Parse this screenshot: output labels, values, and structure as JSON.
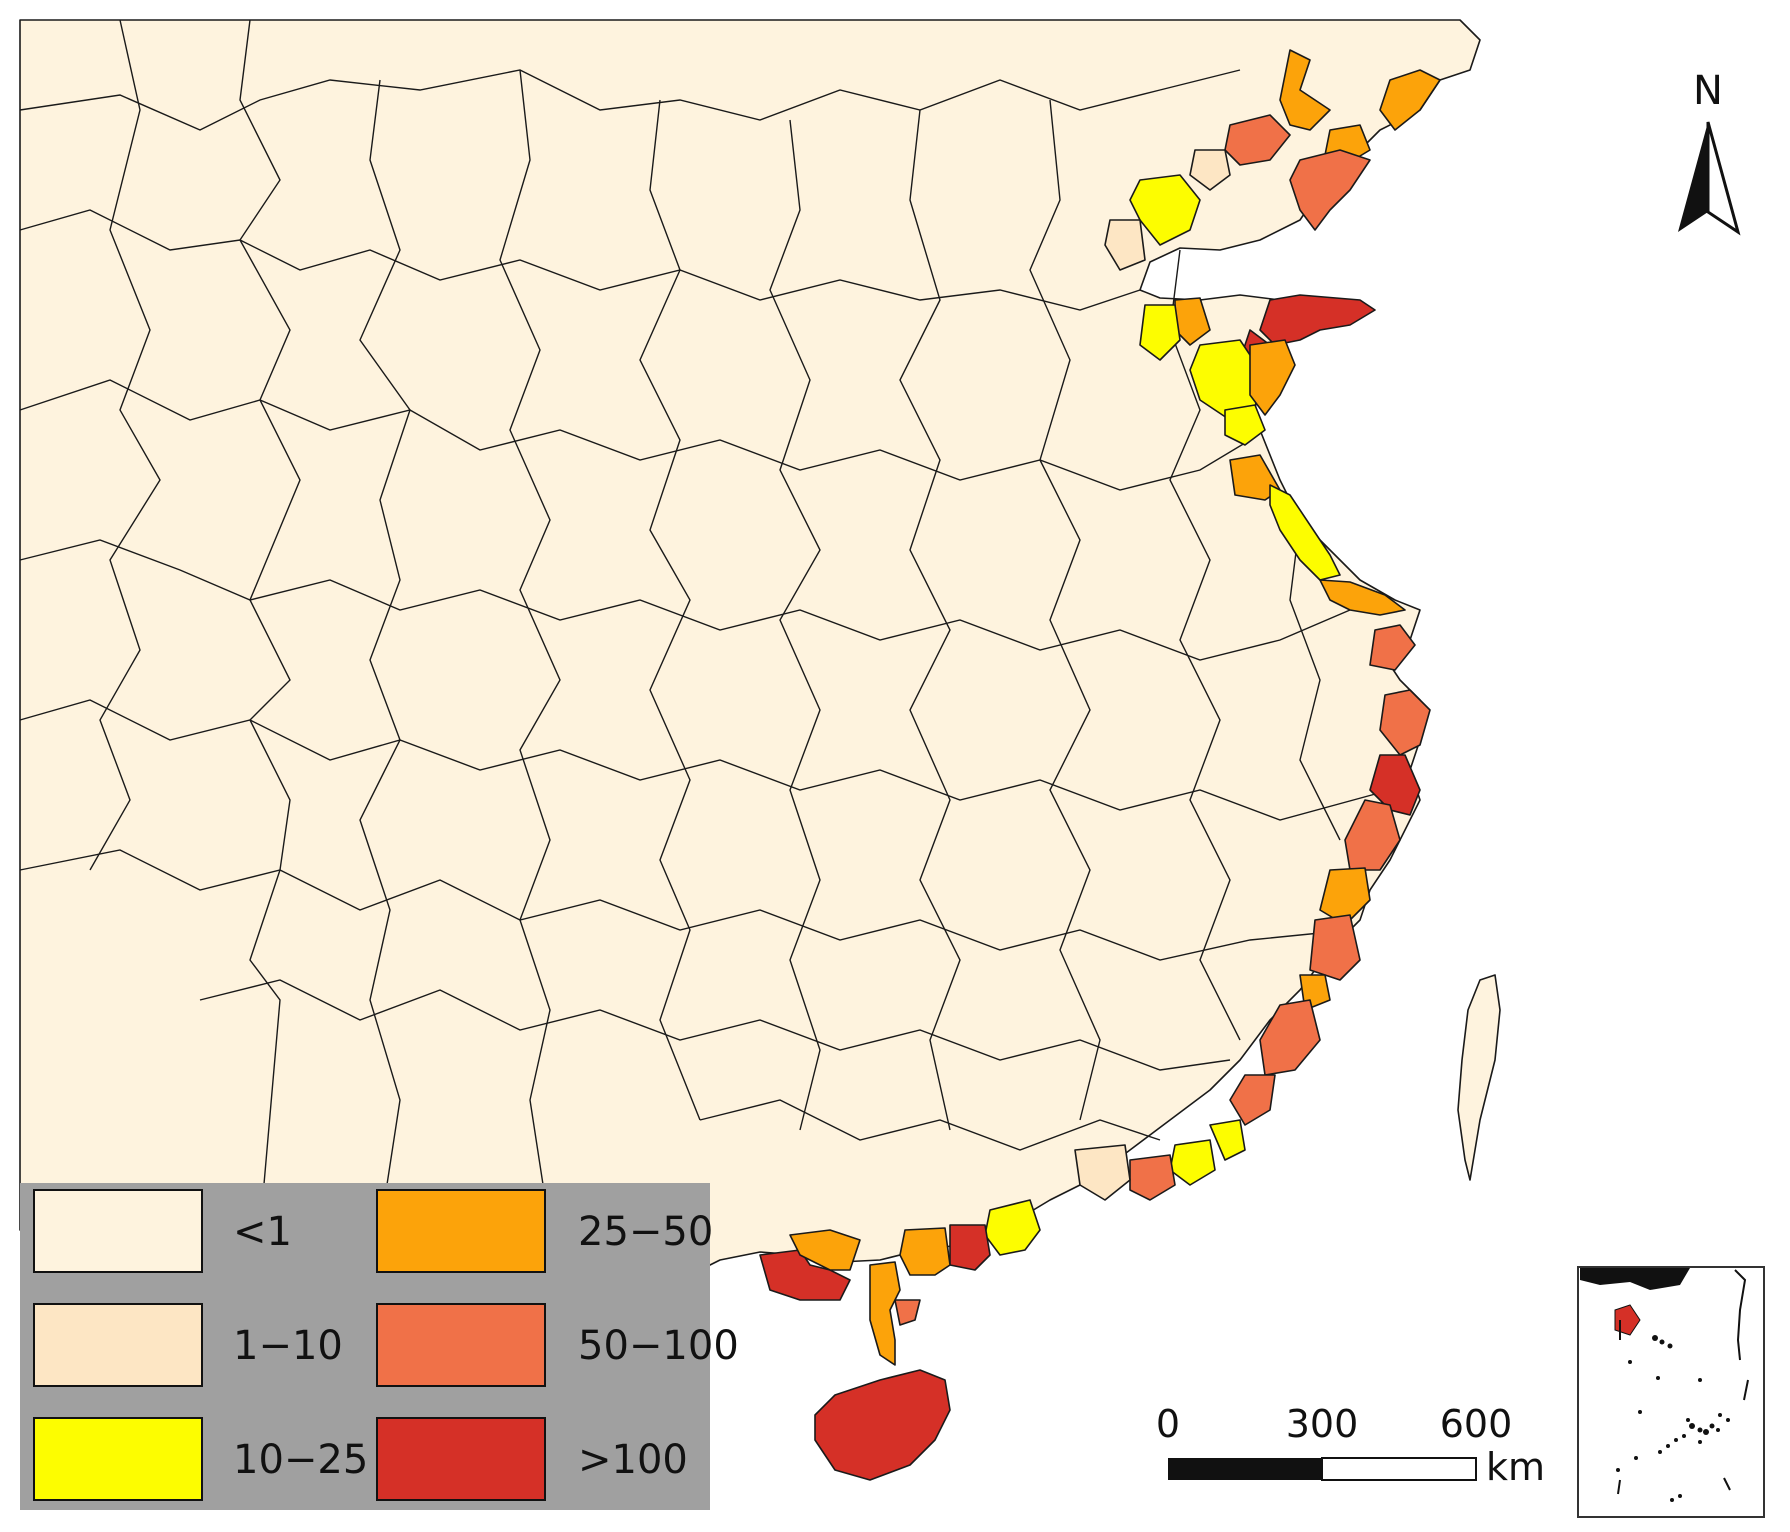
{
  "colors": {
    "land": "#fef3de",
    "lt1": "#fef3de",
    "c1_10": "#fde6c4",
    "c10_25": "#fdfd00",
    "c25_50": "#fca30a",
    "c50_100": "#f07148",
    "gt100": "#d53027",
    "sea": "#ffffff",
    "legend_bg": "#a0a0a0"
  },
  "legend": {
    "items": [
      {
        "label": "<1",
        "color": "#fef3de"
      },
      {
        "label": "1−10",
        "color": "#fde6c4"
      },
      {
        "label": "10−25",
        "color": "#fdfd00"
      },
      {
        "label": "25−50",
        "color": "#fca30a"
      },
      {
        "label": "50−100",
        "color": "#f07148"
      },
      {
        "label": ">100",
        "color": "#d53027"
      }
    ]
  },
  "north_arrow": {
    "label": "N",
    "icon": "north-arrow-icon"
  },
  "scale_bar": {
    "ticks": [
      "0",
      "300",
      "600"
    ],
    "unit": "km"
  },
  "inset": {
    "icon": "south-china-sea-inset"
  }
}
